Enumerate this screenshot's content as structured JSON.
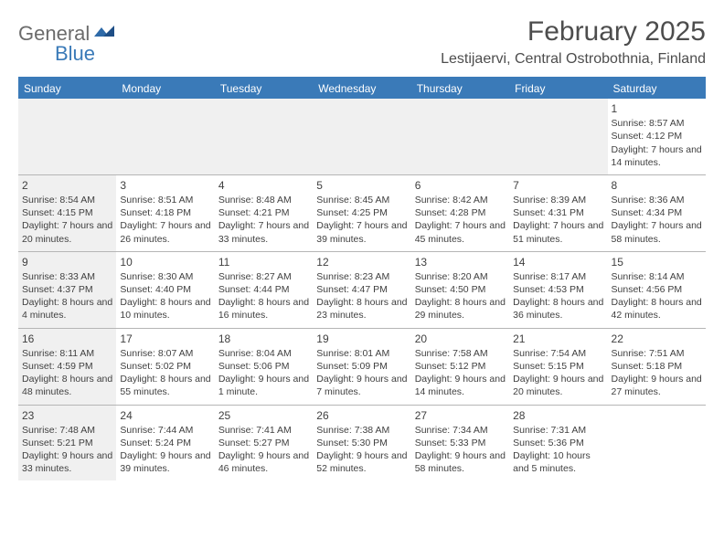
{
  "logo": {
    "word1": "General",
    "word2": "Blue"
  },
  "title": "February 2025",
  "location": "Lestijaervi, Central Ostrobothnia, Finland",
  "colors": {
    "header_bar": "#3a7ab8",
    "header_border": "#3a7ab8",
    "row_border": "#b5b5b5",
    "sunday_bg": "#f0f0f0",
    "empty_bg": "#f0f0f0",
    "text": "#3f3f3f",
    "logo_gray": "#6b6b6b",
    "logo_blue": "#3a7ab8"
  },
  "weekdays": [
    "Sunday",
    "Monday",
    "Tuesday",
    "Wednesday",
    "Thursday",
    "Friday",
    "Saturday"
  ],
  "weeks": [
    [
      null,
      null,
      null,
      null,
      null,
      null,
      {
        "n": "1",
        "sunrise": "Sunrise: 8:57 AM",
        "sunset": "Sunset: 4:12 PM",
        "daylight": "Daylight: 7 hours and 14 minutes."
      }
    ],
    [
      {
        "n": "2",
        "sunrise": "Sunrise: 8:54 AM",
        "sunset": "Sunset: 4:15 PM",
        "daylight": "Daylight: 7 hours and 20 minutes."
      },
      {
        "n": "3",
        "sunrise": "Sunrise: 8:51 AM",
        "sunset": "Sunset: 4:18 PM",
        "daylight": "Daylight: 7 hours and 26 minutes."
      },
      {
        "n": "4",
        "sunrise": "Sunrise: 8:48 AM",
        "sunset": "Sunset: 4:21 PM",
        "daylight": "Daylight: 7 hours and 33 minutes."
      },
      {
        "n": "5",
        "sunrise": "Sunrise: 8:45 AM",
        "sunset": "Sunset: 4:25 PM",
        "daylight": "Daylight: 7 hours and 39 minutes."
      },
      {
        "n": "6",
        "sunrise": "Sunrise: 8:42 AM",
        "sunset": "Sunset: 4:28 PM",
        "daylight": "Daylight: 7 hours and 45 minutes."
      },
      {
        "n": "7",
        "sunrise": "Sunrise: 8:39 AM",
        "sunset": "Sunset: 4:31 PM",
        "daylight": "Daylight: 7 hours and 51 minutes."
      },
      {
        "n": "8",
        "sunrise": "Sunrise: 8:36 AM",
        "sunset": "Sunset: 4:34 PM",
        "daylight": "Daylight: 7 hours and 58 minutes."
      }
    ],
    [
      {
        "n": "9",
        "sunrise": "Sunrise: 8:33 AM",
        "sunset": "Sunset: 4:37 PM",
        "daylight": "Daylight: 8 hours and 4 minutes."
      },
      {
        "n": "10",
        "sunrise": "Sunrise: 8:30 AM",
        "sunset": "Sunset: 4:40 PM",
        "daylight": "Daylight: 8 hours and 10 minutes."
      },
      {
        "n": "11",
        "sunrise": "Sunrise: 8:27 AM",
        "sunset": "Sunset: 4:44 PM",
        "daylight": "Daylight: 8 hours and 16 minutes."
      },
      {
        "n": "12",
        "sunrise": "Sunrise: 8:23 AM",
        "sunset": "Sunset: 4:47 PM",
        "daylight": "Daylight: 8 hours and 23 minutes."
      },
      {
        "n": "13",
        "sunrise": "Sunrise: 8:20 AM",
        "sunset": "Sunset: 4:50 PM",
        "daylight": "Daylight: 8 hours and 29 minutes."
      },
      {
        "n": "14",
        "sunrise": "Sunrise: 8:17 AM",
        "sunset": "Sunset: 4:53 PM",
        "daylight": "Daylight: 8 hours and 36 minutes."
      },
      {
        "n": "15",
        "sunrise": "Sunrise: 8:14 AM",
        "sunset": "Sunset: 4:56 PM",
        "daylight": "Daylight: 8 hours and 42 minutes."
      }
    ],
    [
      {
        "n": "16",
        "sunrise": "Sunrise: 8:11 AM",
        "sunset": "Sunset: 4:59 PM",
        "daylight": "Daylight: 8 hours and 48 minutes."
      },
      {
        "n": "17",
        "sunrise": "Sunrise: 8:07 AM",
        "sunset": "Sunset: 5:02 PM",
        "daylight": "Daylight: 8 hours and 55 minutes."
      },
      {
        "n": "18",
        "sunrise": "Sunrise: 8:04 AM",
        "sunset": "Sunset: 5:06 PM",
        "daylight": "Daylight: 9 hours and 1 minute."
      },
      {
        "n": "19",
        "sunrise": "Sunrise: 8:01 AM",
        "sunset": "Sunset: 5:09 PM",
        "daylight": "Daylight: 9 hours and 7 minutes."
      },
      {
        "n": "20",
        "sunrise": "Sunrise: 7:58 AM",
        "sunset": "Sunset: 5:12 PM",
        "daylight": "Daylight: 9 hours and 14 minutes."
      },
      {
        "n": "21",
        "sunrise": "Sunrise: 7:54 AM",
        "sunset": "Sunset: 5:15 PM",
        "daylight": "Daylight: 9 hours and 20 minutes."
      },
      {
        "n": "22",
        "sunrise": "Sunrise: 7:51 AM",
        "sunset": "Sunset: 5:18 PM",
        "daylight": "Daylight: 9 hours and 27 minutes."
      }
    ],
    [
      {
        "n": "23",
        "sunrise": "Sunrise: 7:48 AM",
        "sunset": "Sunset: 5:21 PM",
        "daylight": "Daylight: 9 hours and 33 minutes."
      },
      {
        "n": "24",
        "sunrise": "Sunrise: 7:44 AM",
        "sunset": "Sunset: 5:24 PM",
        "daylight": "Daylight: 9 hours and 39 minutes."
      },
      {
        "n": "25",
        "sunrise": "Sunrise: 7:41 AM",
        "sunset": "Sunset: 5:27 PM",
        "daylight": "Daylight: 9 hours and 46 minutes."
      },
      {
        "n": "26",
        "sunrise": "Sunrise: 7:38 AM",
        "sunset": "Sunset: 5:30 PM",
        "daylight": "Daylight: 9 hours and 52 minutes."
      },
      {
        "n": "27",
        "sunrise": "Sunrise: 7:34 AM",
        "sunset": "Sunset: 5:33 PM",
        "daylight": "Daylight: 9 hours and 58 minutes."
      },
      {
        "n": "28",
        "sunrise": "Sunrise: 7:31 AM",
        "sunset": "Sunset: 5:36 PM",
        "daylight": "Daylight: 10 hours and 5 minutes."
      },
      null
    ]
  ]
}
